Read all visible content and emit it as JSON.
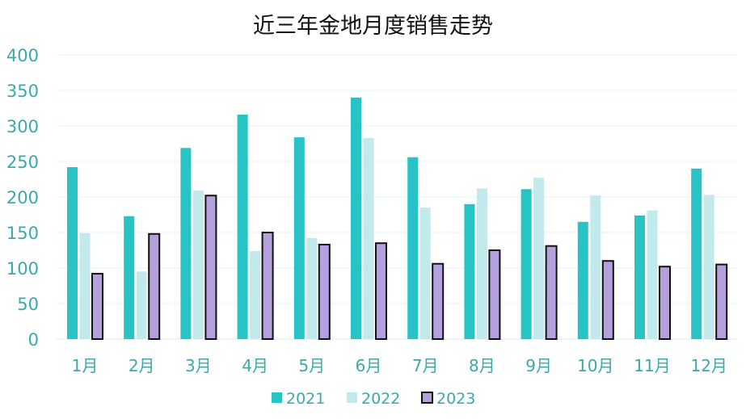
{
  "chart_data": {
    "type": "bar",
    "title": "近三年金地月度销售走势",
    "categories": [
      "1月",
      "2月",
      "3月",
      "4月",
      "5月",
      "6月",
      "7月",
      "8月",
      "9月",
      "10月",
      "11月",
      "12月"
    ],
    "series": [
      {
        "name": "2021",
        "color": "#27c3c5",
        "values": [
          242,
          173,
          269,
          316,
          284,
          340,
          256,
          190,
          211,
          165,
          174,
          240
        ]
      },
      {
        "name": "2022",
        "color": "#c2e9ec",
        "values": [
          149,
          95,
          209,
          124,
          142,
          283,
          185,
          212,
          227,
          202,
          181,
          203
        ]
      },
      {
        "name": "2023",
        "color": "#b3a0dc",
        "values": [
          92,
          148,
          202,
          150,
          133,
          135,
          106,
          125,
          131,
          110,
          102,
          105
        ]
      }
    ],
    "ylim": [
      0,
      400
    ],
    "yticks": [
      0,
      50,
      100,
      150,
      200,
      250,
      300,
      350,
      400
    ],
    "grid": true,
    "legend": "bottom",
    "xlabel": "",
    "ylabel": ""
  }
}
